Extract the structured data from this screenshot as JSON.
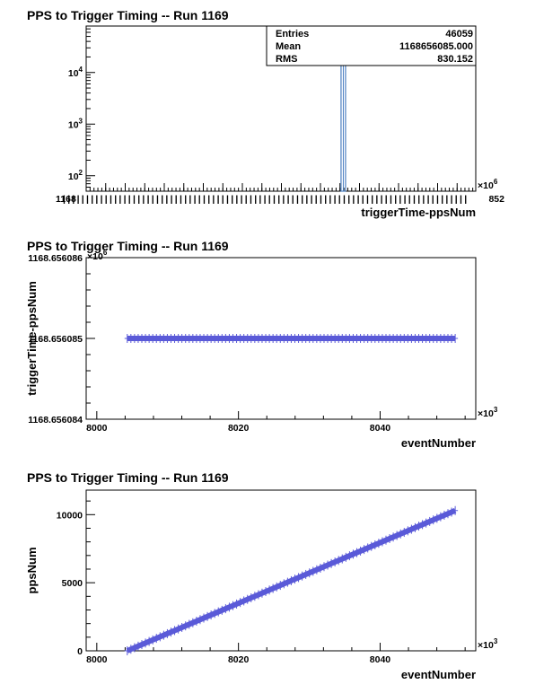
{
  "chart_data": [
    {
      "type": "bar",
      "title": "PPS to Trigger Timing -- Run 1169",
      "xlabel": "triggerTime-ppsNum",
      "ylabel": "",
      "x_exponent": "×10",
      "x_exponent_power": "6",
      "y_scale": "log",
      "y_tick_labels": [
        "10",
        "10",
        "10"
      ],
      "y_tick_powers": [
        "2",
        "3",
        "4"
      ],
      "y_tick_values": [
        100,
        1000,
        10000
      ],
      "x_tick_label_left": "1168",
      "x_tick_label_right": "852",
      "bins": [
        {
          "x": 0.66,
          "value": 46059
        }
      ],
      "stats": {
        "rows": [
          {
            "label": "Entries",
            "value": "46059"
          },
          {
            "label": "Mean",
            "value": "1168656085.000"
          },
          {
            "label": "RMS",
            "value": "830.152"
          }
        ]
      },
      "grid": false,
      "bar_color": "#4a7fc0"
    },
    {
      "type": "scatter",
      "title": "PPS to Trigger Timing -- Run 1169",
      "xlabel": "eventNumber",
      "ylabel": "triggerTime-ppsNum",
      "x_exponent": "×10",
      "x_exponent_power": "3",
      "y_exponent": "×10",
      "y_exponent_power": "6",
      "x_ticks": [
        "8000",
        "8020",
        "8040"
      ],
      "x_tick_values": [
        8000,
        8020,
        8040
      ],
      "xlim": [
        7998.5,
        8053.5
      ],
      "y_ticks": [
        "1168.656084",
        "1168.656085",
        "1168.656086"
      ],
      "y_tick_values": [
        1168.656084,
        1168.656085,
        1168.656086
      ],
      "ylim": [
        1168.656084,
        1168.656086
      ],
      "series": [
        {
          "x_start": 8004.3,
          "x_end": 8050.6,
          "y_start": 1168.656085,
          "y_end": 1168.656085
        }
      ],
      "grid": false,
      "marker_color": "#5a5ad8"
    },
    {
      "type": "scatter",
      "title": "PPS to Trigger Timing -- Run 1169",
      "xlabel": "eventNumber",
      "ylabel": "ppsNum",
      "x_exponent": "×10",
      "x_exponent_power": "3",
      "x_ticks": [
        "8000",
        "8020",
        "8040"
      ],
      "x_tick_values": [
        8000,
        8020,
        8040
      ],
      "xlim": [
        7998.5,
        8053.5
      ],
      "y_ticks": [
        "0",
        "5000",
        "10000"
      ],
      "y_tick_values": [
        0,
        5000,
        10000
      ],
      "ylim": [
        0,
        11800
      ],
      "series": [
        {
          "x_start": 8004.3,
          "x_end": 8050.6,
          "y_start": 0,
          "y_end": 10300
        }
      ],
      "grid": false,
      "marker_color": "#5a5ad8"
    }
  ]
}
